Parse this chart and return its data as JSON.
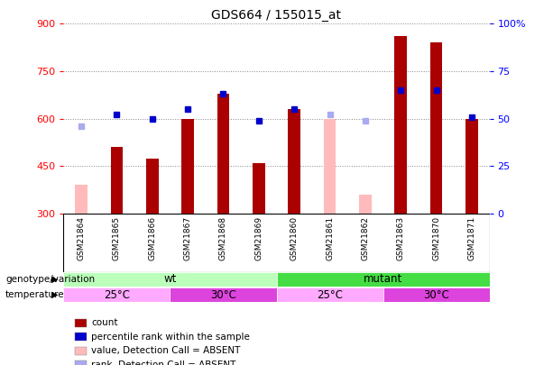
{
  "title": "GDS664 / 155015_at",
  "samples": [
    "GSM21864",
    "GSM21865",
    "GSM21866",
    "GSM21867",
    "GSM21868",
    "GSM21869",
    "GSM21860",
    "GSM21861",
    "GSM21862",
    "GSM21863",
    "GSM21870",
    "GSM21871"
  ],
  "count": [
    null,
    510,
    475,
    600,
    680,
    460,
    630,
    null,
    null,
    860,
    840,
    600
  ],
  "count_absent": [
    390,
    null,
    null,
    null,
    null,
    null,
    null,
    600,
    360,
    null,
    null,
    null
  ],
  "percentile_rank": [
    null,
    52,
    50,
    55,
    63,
    49,
    55,
    null,
    null,
    65,
    65,
    51
  ],
  "percentile_rank_absent": [
    46,
    null,
    null,
    null,
    null,
    null,
    null,
    52,
    49,
    null,
    null,
    null
  ],
  "ylim_left": [
    300,
    900
  ],
  "ylim_right": [
    0,
    100
  ],
  "yticks_left": [
    300,
    450,
    600,
    750,
    900
  ],
  "yticks_right": [
    0,
    25,
    50,
    75,
    100
  ],
  "bar_width": 0.35,
  "count_color": "#aa0000",
  "count_absent_color": "#ffbbbb",
  "rank_color": "#0000cc",
  "rank_absent_color": "#aaaaee",
  "genotype_groups": [
    {
      "label": "wt",
      "start": 0,
      "end": 6,
      "color": "#bbffbb"
    },
    {
      "label": "mutant",
      "start": 6,
      "end": 12,
      "color": "#44dd44"
    }
  ],
  "temp_groups": [
    {
      "label": "25°C",
      "start": 0,
      "end": 3,
      "color": "#ffaaff"
    },
    {
      "label": "30°C",
      "start": 3,
      "end": 6,
      "color": "#dd44dd"
    },
    {
      "label": "25°C",
      "start": 6,
      "end": 9,
      "color": "#ffaaff"
    },
    {
      "label": "30°C",
      "start": 9,
      "end": 12,
      "color": "#dd44dd"
    }
  ],
  "legend_items": [
    {
      "label": "count",
      "color": "#aa0000"
    },
    {
      "label": "percentile rank within the sample",
      "color": "#0000cc"
    },
    {
      "label": "value, Detection Call = ABSENT",
      "color": "#ffbbbb"
    },
    {
      "label": "rank, Detection Call = ABSENT",
      "color": "#aaaaee"
    }
  ],
  "background_color": "#ffffff",
  "grid_color": "#888888",
  "plot_bg": "#ffffff",
  "label_area_color": "#cccccc"
}
